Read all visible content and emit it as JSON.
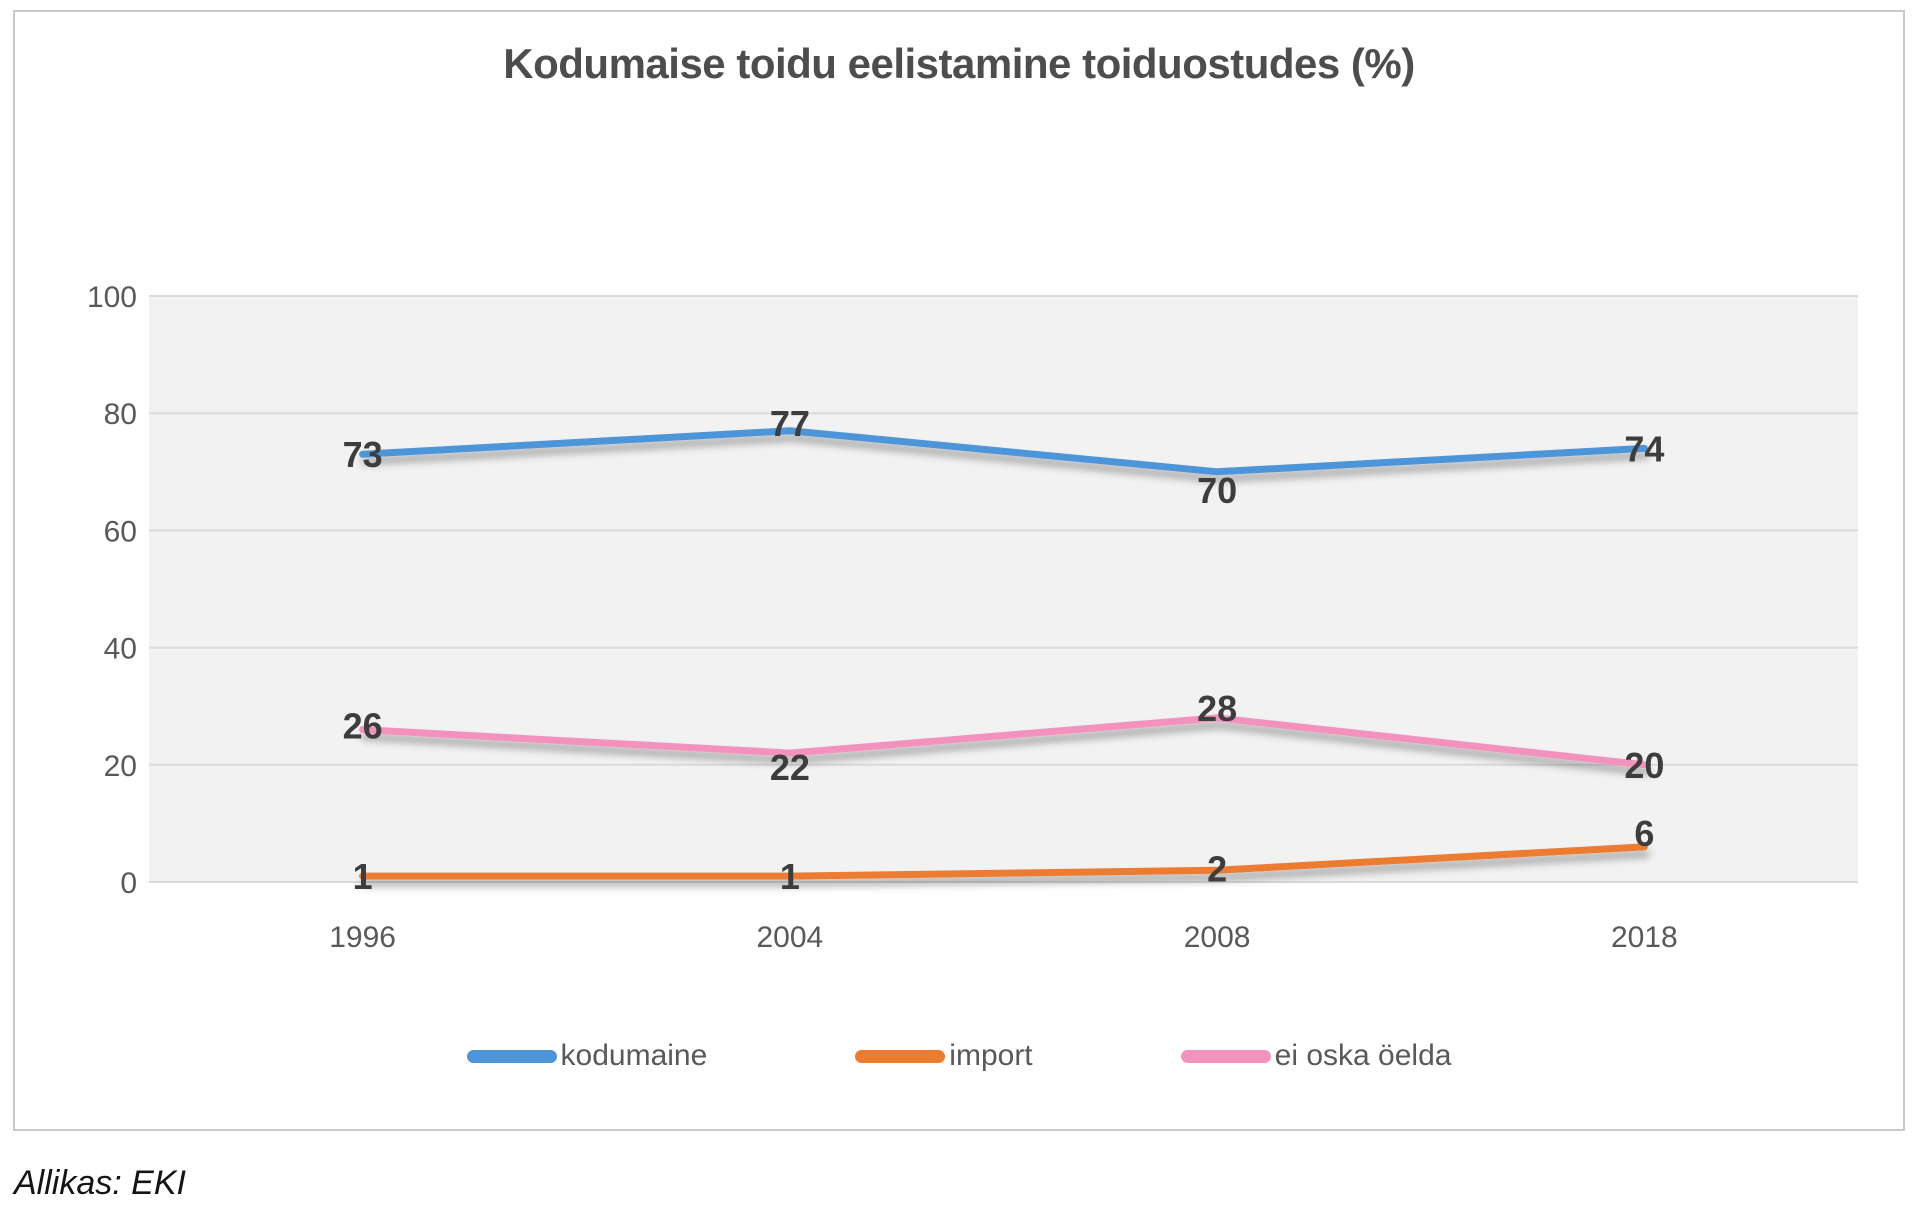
{
  "caption": "Allikas: EKI",
  "chart_data": {
    "type": "line",
    "title": "Kodumaise toidu eelistamine toiduostudes (%)",
    "categories": [
      "1996",
      "2004",
      "2008",
      "2018"
    ],
    "series": [
      {
        "name": "kodumaine",
        "color": "#4E95D9",
        "values": [
          73,
          77,
          70,
          74
        ]
      },
      {
        "name": "import",
        "color": "#EC7C30",
        "values": [
          1,
          1,
          2,
          6
        ]
      },
      {
        "name": "ei oska öelda",
        "color": "#F392BD",
        "values": [
          26,
          22,
          28,
          20
        ]
      }
    ],
    "ylim": [
      0,
      100
    ],
    "yticks": [
      0,
      20,
      40,
      60,
      80,
      100
    ],
    "grid": "horizontal",
    "data_labels": true,
    "legend_position": "bottom",
    "plot_bg": "#F2F2F2",
    "gridline_color": "#DADADA",
    "axis_text_color": "#595959",
    "data_label_color": "#3D3D3D"
  }
}
